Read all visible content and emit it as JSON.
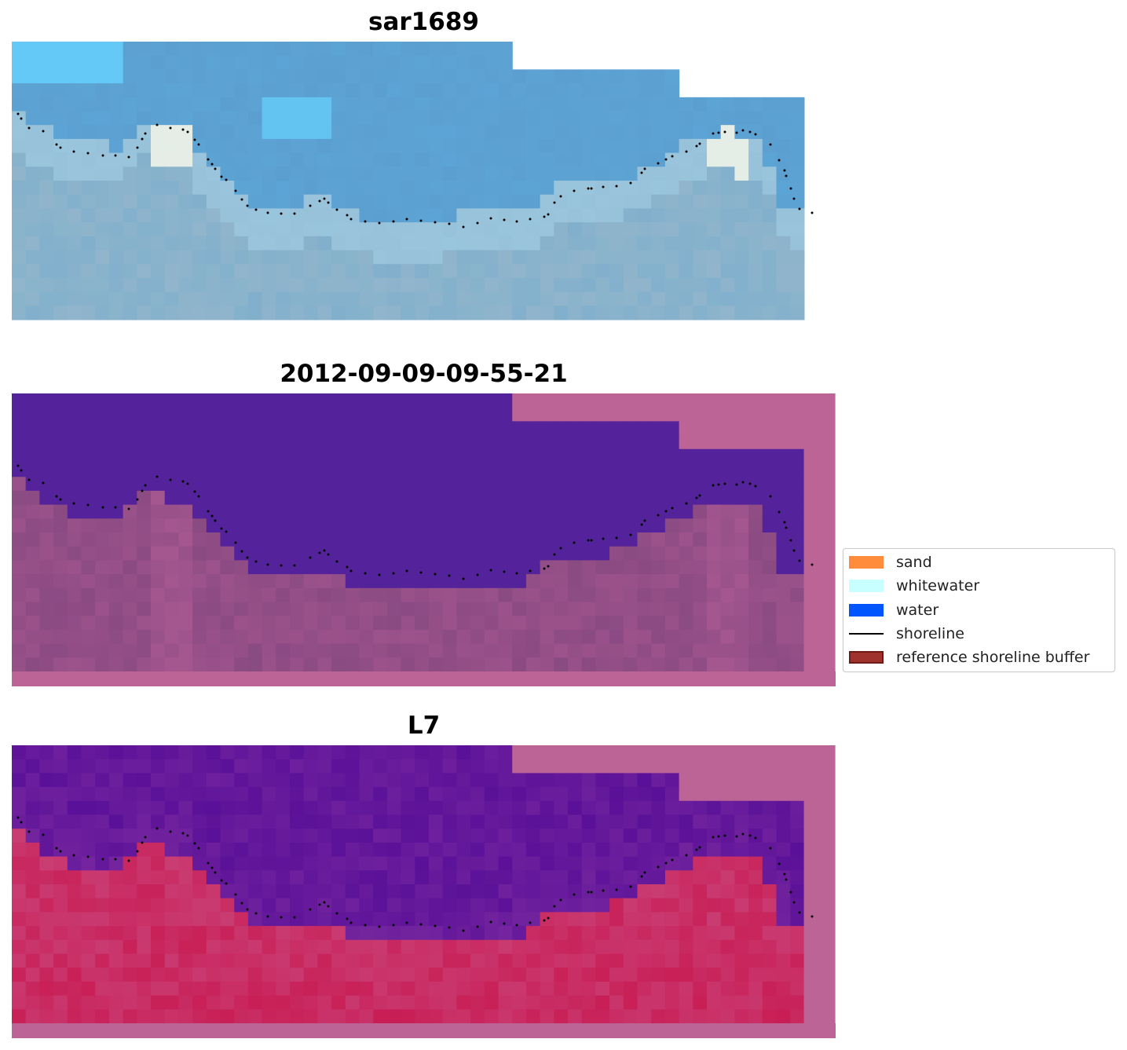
{
  "panels": [
    {
      "title": "sar1689"
    },
    {
      "title": "2012-09-09-09-55-21"
    },
    {
      "title": "L7"
    }
  ],
  "legend": {
    "items": [
      {
        "label": "sand",
        "color": "#ff8c3a",
        "kind": "patch"
      },
      {
        "label": "whitewater",
        "color": "#c8ffff",
        "kind": "patch"
      },
      {
        "label": "water",
        "color": "#0055ff",
        "kind": "patch"
      },
      {
        "label": "shoreline",
        "color": "#000000",
        "kind": "line"
      },
      {
        "label": "reference shoreline buffer",
        "color": "#a0322e",
        "kind": "patch"
      }
    ]
  },
  "colors": {
    "buffer_overlay": "#bb6495",
    "class_water_panel2": "#54229a",
    "rgb_water": "#5b9fd0",
    "rgb_whitewater": "#f4f6e8",
    "rgb_nearshore": "#82b0cc",
    "mndwi_low": "#5a1098",
    "mndwi_high": "#c8124a",
    "shoreline_dots": "#000000"
  }
}
